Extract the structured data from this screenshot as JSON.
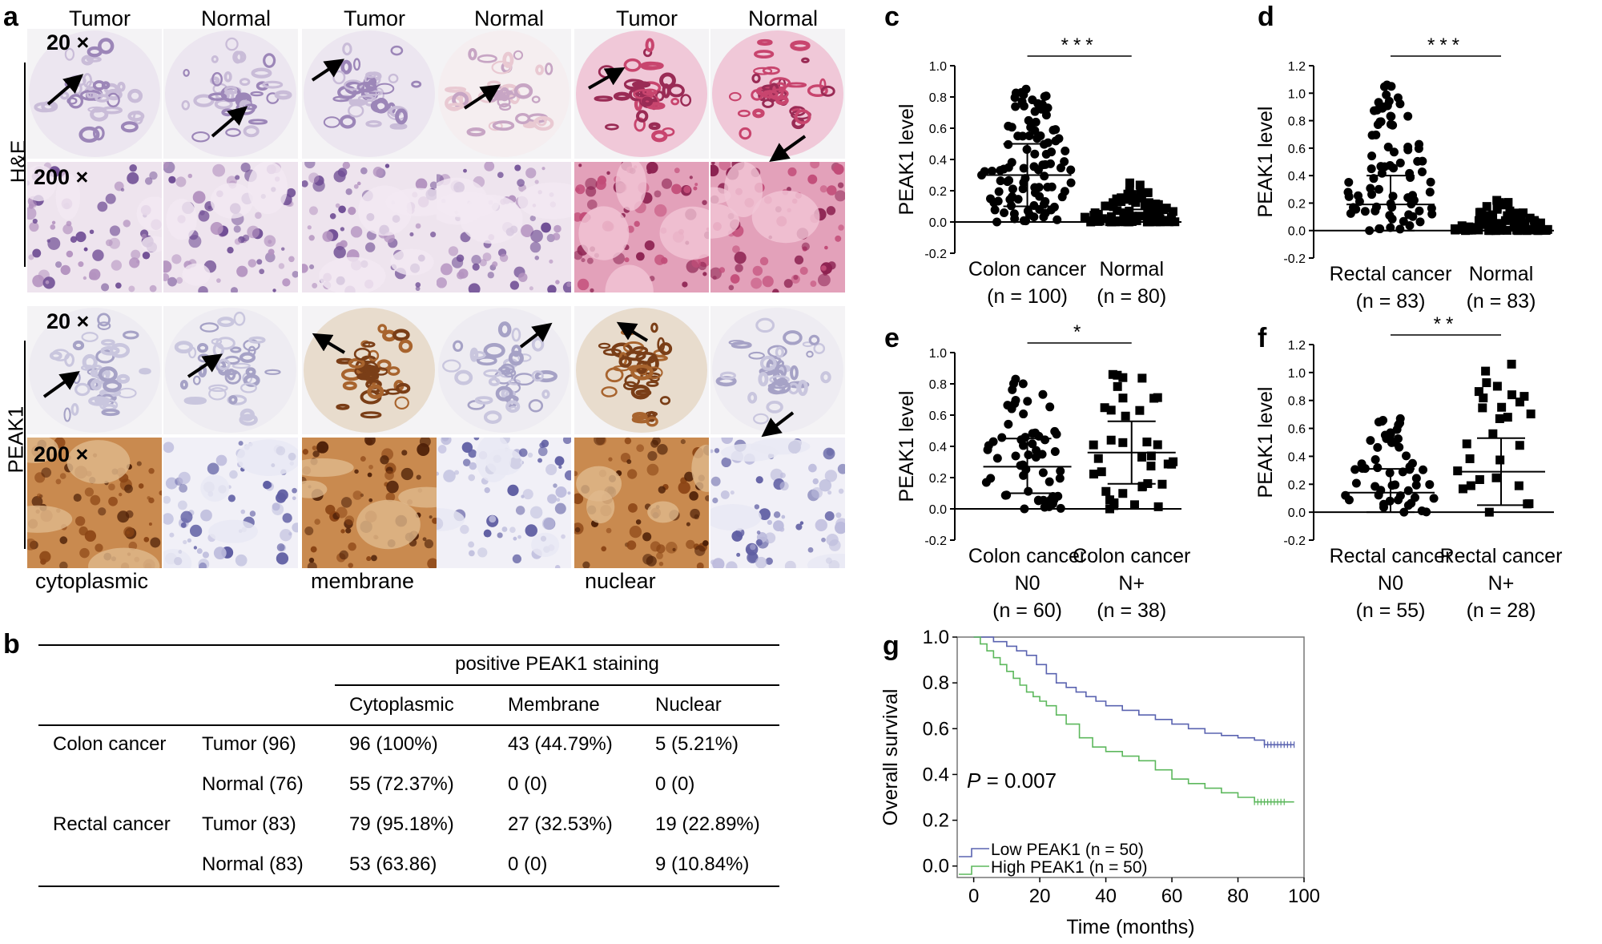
{
  "panels": {
    "a": "a",
    "b": "b",
    "c": "c",
    "d": "d",
    "e": "e",
    "f": "f",
    "g": "g"
  },
  "panel_a": {
    "column_headers": [
      "Tumor",
      "Normal",
      "Tumor",
      "Normal",
      "Tumor",
      "Normal"
    ],
    "row_labels": [
      "H&E",
      "PEAK1"
    ],
    "magnifications": [
      "20 ×",
      "200 ×",
      "20 ×",
      "200 ×"
    ],
    "localization_labels": [
      "cytoplasmic",
      "membrane",
      "nuclear"
    ]
  },
  "table_b": {
    "group_header": "positive PEAK1 staining",
    "columns": [
      "Cytoplasmic",
      "Membrane",
      "Nuclear"
    ],
    "rows": [
      {
        "cancer": "Colon cancer",
        "tissue": "Tumor (96)",
        "cyto": "96 (100%)",
        "memb": "43 (44.79%)",
        "nucl": "5 (5.21%)"
      },
      {
        "cancer": "",
        "tissue": "Normal (76)",
        "cyto": "55 (72.37%)",
        "memb": "0 (0)",
        "nucl": "0 (0)"
      },
      {
        "cancer": "Rectal cancer",
        "tissue": "Tumor (83)",
        "cyto": "79 (95.18%)",
        "memb": "27 (32.53%)",
        "nucl": "19 (22.89%)"
      },
      {
        "cancer": "",
        "tissue": "Normal (83)",
        "cyto": "53 (63.86)",
        "memb": "0 (0)",
        "nucl": "9 (10.84%)"
      }
    ]
  },
  "chart_data": [
    {
      "panel": "c",
      "type": "scatter",
      "ylabel": "PEAK1  level",
      "ylim": [
        -0.2,
        1.0
      ],
      "yticks": [
        "-0.2",
        "0.0",
        "0.2",
        "0.4",
        "0.6",
        "0.8",
        "1.0"
      ],
      "significance": "***",
      "groups": [
        {
          "label": [
            "Colon cancer",
            "(n = 100)"
          ],
          "marker": "circle",
          "n": 100,
          "mean": 0.3,
          "sd_low": 0.1,
          "sd_high": 0.5,
          "max": 0.85,
          "min": 0.0
        },
        {
          "label": [
            "Normal",
            "(n = 80)"
          ],
          "marker": "square",
          "n": 80,
          "mean": 0.03,
          "sd_low": 0.0,
          "sd_high": 0.08,
          "max": 0.25,
          "min": 0.0
        }
      ]
    },
    {
      "panel": "d",
      "type": "scatter",
      "ylabel": "PEAK1  level",
      "ylim": [
        -0.2,
        1.2
      ],
      "yticks": [
        "-0.2",
        "0.0",
        "0.2",
        "0.4",
        "0.6",
        "0.8",
        "1.0",
        "1.2"
      ],
      "significance": "***",
      "groups": [
        {
          "label": [
            "Rectal cancer",
            "(n = 83)"
          ],
          "marker": "circle",
          "n": 83,
          "mean": 0.19,
          "sd_low": 0.0,
          "sd_high": 0.4,
          "max": 1.06,
          "min": 0.0
        },
        {
          "label": [
            "Normal",
            "(n = 83)"
          ],
          "marker": "square",
          "n": 83,
          "mean": 0.02,
          "sd_low": 0.0,
          "sd_high": 0.06,
          "max": 0.22,
          "min": 0.0
        }
      ]
    },
    {
      "panel": "e",
      "type": "scatter",
      "ylabel": "PEAK1  level",
      "ylim": [
        -0.2,
        1.0
      ],
      "yticks": [
        "-0.2",
        "0.0",
        "0.2",
        "0.4",
        "0.6",
        "0.8",
        "1.0"
      ],
      "significance": "*",
      "groups": [
        {
          "label": [
            "Colon cancer",
            "N0",
            "(n = 60)"
          ],
          "marker": "circle",
          "n": 60,
          "mean": 0.27,
          "sd_low": 0.1,
          "sd_high": 0.45,
          "max": 0.83,
          "min": 0.0
        },
        {
          "label": [
            "Colon cancer",
            "N+",
            "(n = 38)"
          ],
          "marker": "square",
          "n": 38,
          "mean": 0.36,
          "sd_low": 0.16,
          "sd_high": 0.56,
          "max": 0.86,
          "min": 0.0
        }
      ]
    },
    {
      "panel": "f",
      "type": "scatter",
      "ylabel": "PEAK1  level",
      "ylim": [
        -0.2,
        1.2
      ],
      "yticks": [
        "-0.2",
        "0.0",
        "0.2",
        "0.4",
        "0.6",
        "0.8",
        "1.0",
        "1.2"
      ],
      "significance": "**",
      "groups": [
        {
          "label": [
            "Rectal cancer",
            "N0",
            "(n = 55)"
          ],
          "marker": "circle",
          "n": 55,
          "mean": 0.14,
          "sd_low": 0.0,
          "sd_high": 0.31,
          "max": 0.67,
          "min": 0.0
        },
        {
          "label": [
            "Rectal cancer",
            "N+",
            "(n = 28)"
          ],
          "marker": "square",
          "n": 28,
          "mean": 0.29,
          "sd_low": 0.05,
          "sd_high": 0.53,
          "max": 1.06,
          "min": 0.0
        }
      ]
    },
    {
      "panel": "g",
      "type": "line",
      "xlabel": "Time (months)",
      "ylabel": "Overall survival",
      "xlim": [
        -5,
        100
      ],
      "ylim": [
        -0.05,
        1.0
      ],
      "xticks": [
        "0",
        "20",
        "40",
        "60",
        "80",
        "100"
      ],
      "yticks": [
        "0.0",
        "0.2",
        "0.4",
        "0.6",
        "0.8",
        "1.0"
      ],
      "annotation": {
        "italic": "P",
        "text": " = 0.007"
      },
      "series": [
        {
          "name": "Low PEAK1 (n = 50)",
          "color": "#5a63b0",
          "x": [
            0,
            6,
            10,
            13,
            16,
            19,
            22,
            25,
            28,
            31,
            34,
            37,
            40,
            45,
            50,
            55,
            60,
            65,
            70,
            75,
            80,
            85,
            88,
            97
          ],
          "y": [
            1.0,
            0.98,
            0.96,
            0.94,
            0.92,
            0.88,
            0.84,
            0.8,
            0.78,
            0.76,
            0.74,
            0.72,
            0.7,
            0.68,
            0.66,
            0.64,
            0.62,
            0.6,
            0.58,
            0.57,
            0.56,
            0.55,
            0.53,
            0.53
          ]
        },
        {
          "name": "High PEAK1 (n = 50)",
          "color": "#5db85d",
          "x": [
            0,
            2,
            4,
            6,
            8,
            10,
            12,
            14,
            16,
            18,
            20,
            22,
            25,
            28,
            32,
            36,
            40,
            45,
            50,
            55,
            60,
            65,
            70,
            75,
            80,
            85,
            97
          ],
          "y": [
            1.0,
            0.97,
            0.94,
            0.91,
            0.88,
            0.85,
            0.82,
            0.79,
            0.76,
            0.74,
            0.72,
            0.7,
            0.66,
            0.62,
            0.56,
            0.52,
            0.5,
            0.48,
            0.46,
            0.42,
            0.38,
            0.36,
            0.34,
            0.32,
            0.3,
            0.28,
            0.28
          ]
        }
      ]
    }
  ]
}
